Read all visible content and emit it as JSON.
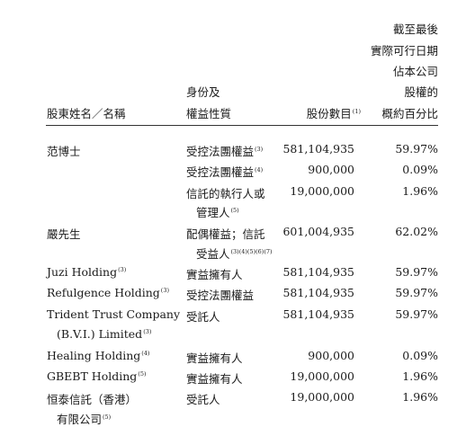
{
  "header": {
    "shareholder": "股東姓名／名稱",
    "capacity": [
      "身份及",
      "權益性質"
    ],
    "shares": "股份數目",
    "shares_note": "(1)",
    "percentage": [
      "截至最後",
      "實際可行日期",
      "佔本公司",
      "股權的",
      "概約百分比"
    ]
  },
  "rows": [
    {
      "name": "范博士",
      "name_note": "",
      "capacity": "受控法團權益",
      "cap_note": "(3)",
      "shares": "581,104,935",
      "pct": "59.97%"
    },
    {
      "name": "",
      "name_note": "",
      "capacity": "受控法團權益",
      "cap_note": "(4)",
      "shares": "900,000",
      "pct": "0.09%"
    },
    {
      "name": "",
      "name_note": "",
      "capacity": "信託的執行人或",
      "cap2": "管理人",
      "cap_note": "(5)",
      "shares": "19,000,000",
      "pct": "1.96%"
    },
    {
      "name": "嚴先生",
      "name_note": "",
      "capacity": "配偶權益；信託",
      "cap2": "受益人",
      "cap_note": "(3)(4)(5)(6)(7)",
      "shares": "601,004,935",
      "pct": "62.02%"
    },
    {
      "name": "Juzi Holding",
      "name_note": "(3)",
      "capacity": "實益擁有人",
      "cap_note": "",
      "shares": "581,104,935",
      "pct": "59.97%"
    },
    {
      "name": "Refulgence Holding",
      "name_note": "(3)",
      "capacity": "受控法團權益",
      "cap_note": "",
      "shares": "581,104,935",
      "pct": "59.97%"
    },
    {
      "name": "Trident Trust Company",
      "name2": "(B.V.I.) Limited",
      "name_note": "(3)",
      "capacity": "受託人",
      "cap_note": "",
      "shares": "581,104,935",
      "pct": "59.97%"
    },
    {
      "name": "Healing Holding",
      "name_note": "(4)",
      "capacity": "實益擁有人",
      "cap_note": "",
      "shares": "900,000",
      "pct": "0.09%"
    },
    {
      "name": "GBEBT Holding",
      "name_note": "(5)",
      "capacity": "實益擁有人",
      "cap_note": "",
      "shares": "19,000,000",
      "pct": "1.96%"
    },
    {
      "name": "恒泰信託（香港）",
      "name2": "有限公司",
      "name_note": "(5)",
      "capacity": "受託人",
      "cap_note": "",
      "shares": "19,000,000",
      "pct": "1.96%"
    }
  ]
}
